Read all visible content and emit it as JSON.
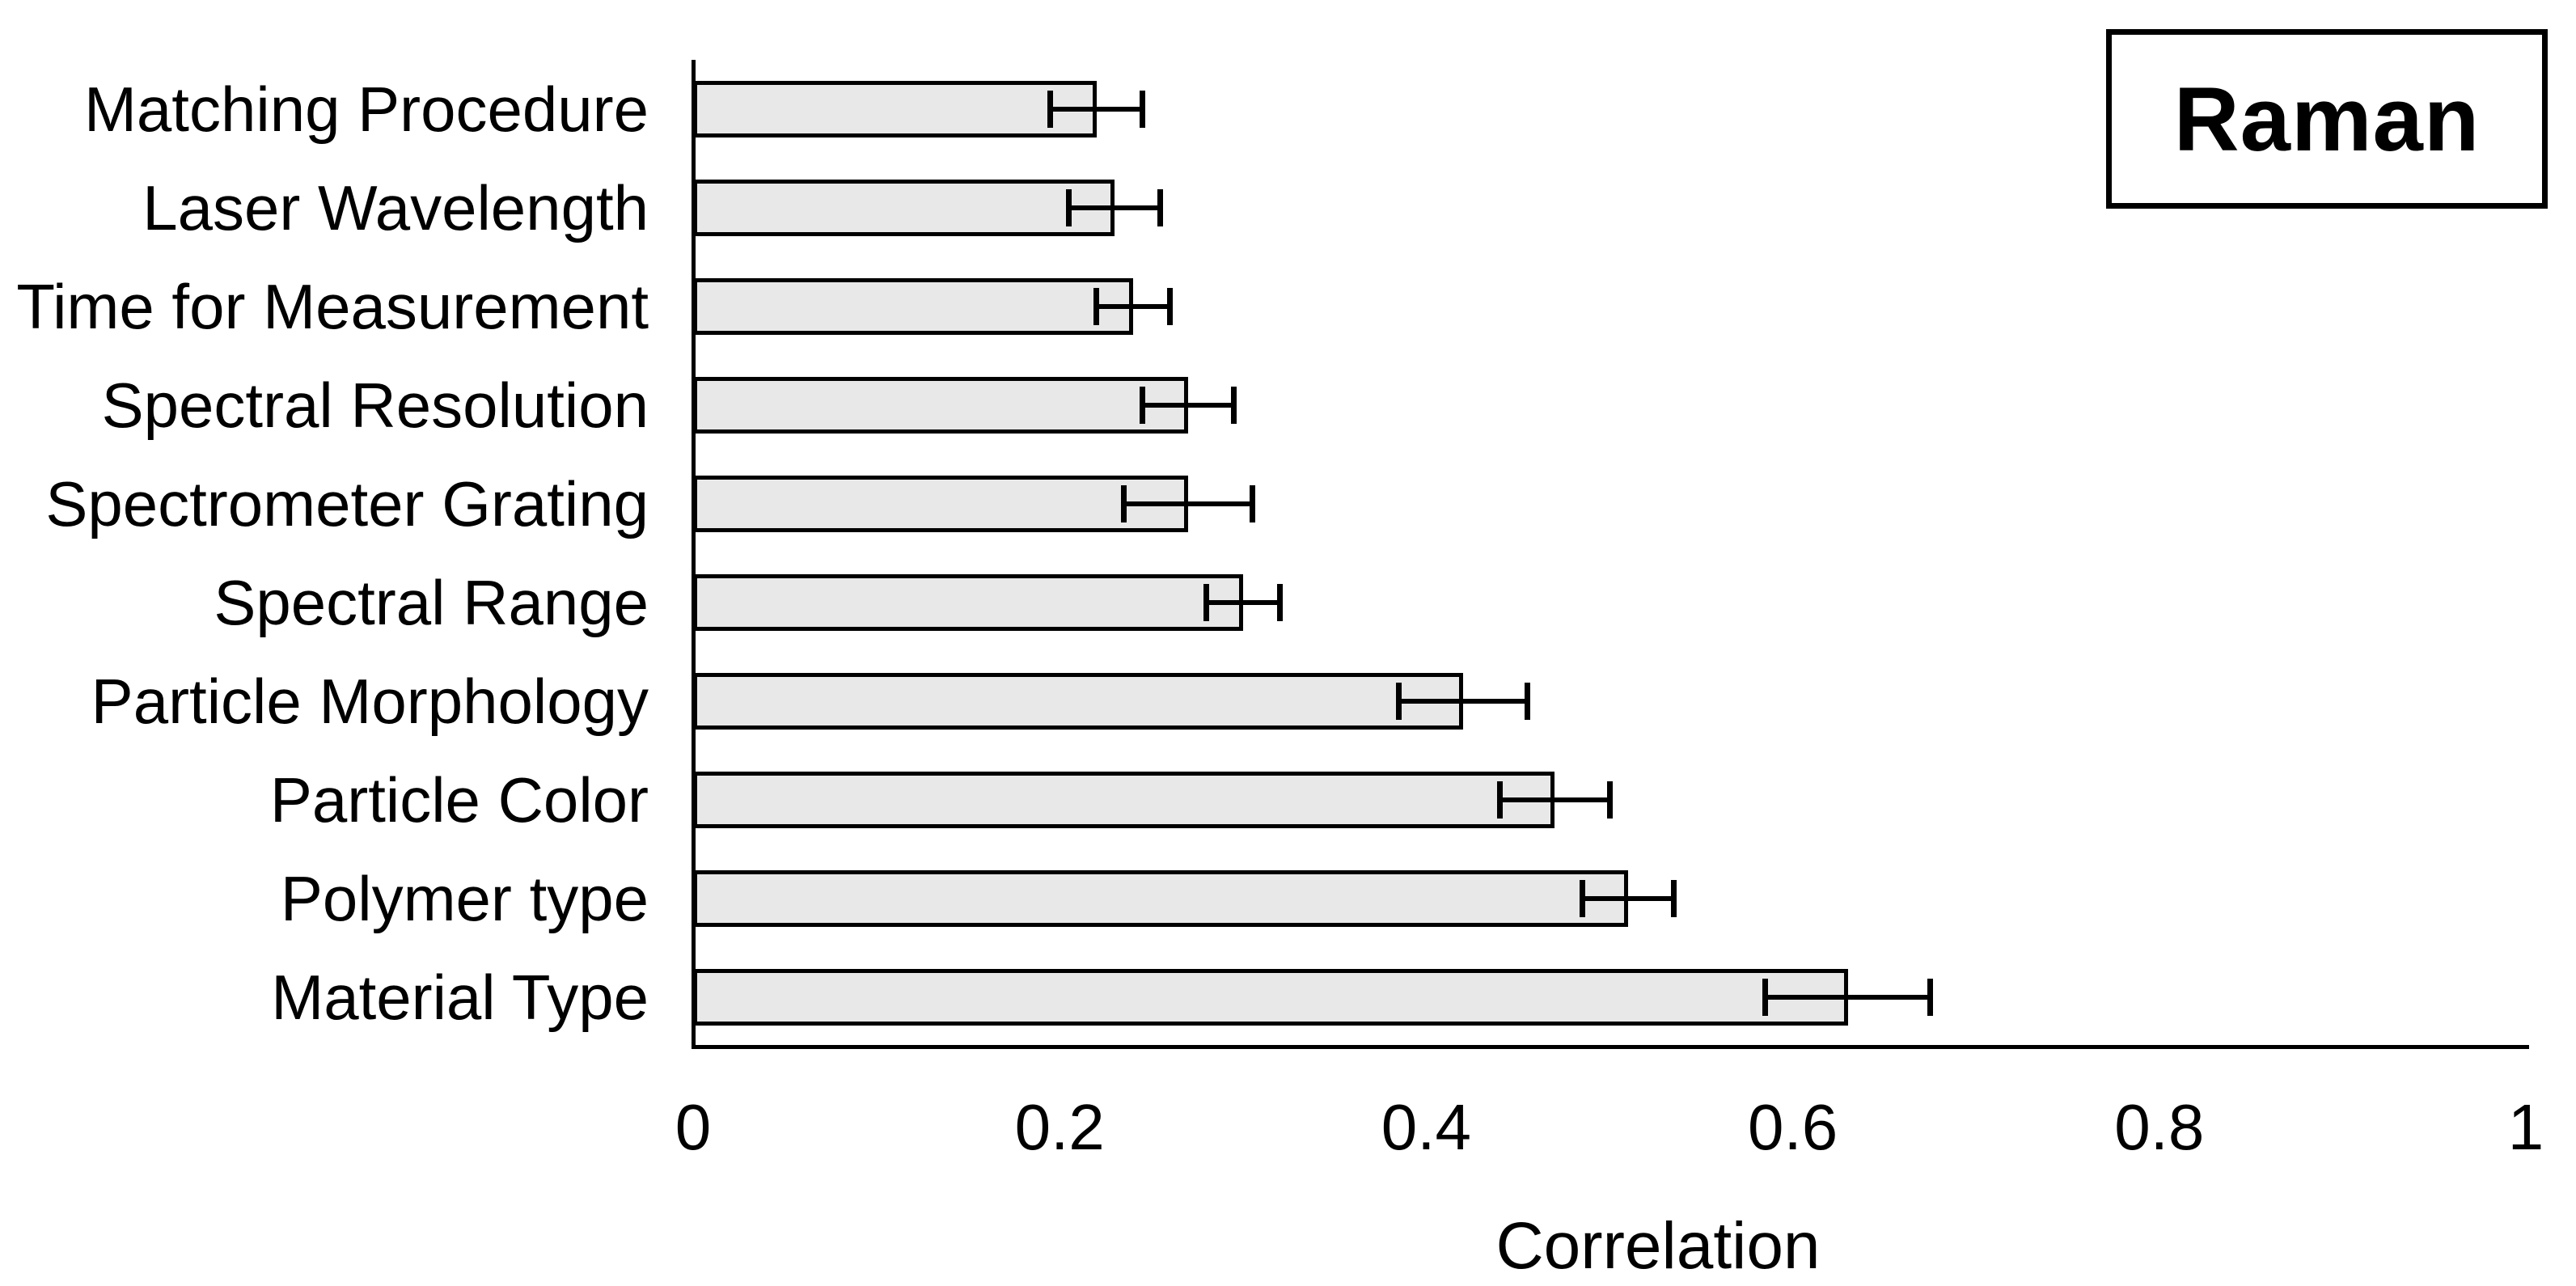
{
  "panel": {
    "label": "Raman"
  },
  "chart_data": {
    "type": "bar",
    "orientation": "horizontal",
    "title": "",
    "xlabel": "Correlation",
    "ylabel": "",
    "xlim": [
      0,
      1
    ],
    "x_ticks": [
      0,
      0.2,
      0.4,
      0.6,
      0.8,
      1
    ],
    "x_tick_labels": [
      "0",
      "0.2",
      "0.4",
      "0.6",
      "0.8",
      "1"
    ],
    "grid": false,
    "legend": false,
    "categories_top_to_bottom": [
      "Matching Procedure",
      "Laser Wavelength",
      "Time for Measurement",
      "Spectral Resolution",
      "Spectrometer Grating",
      "Spectral Range",
      "Particle Morphology",
      "Particle Color",
      "Polymer type",
      "Material Type"
    ],
    "values": [
      0.22,
      0.23,
      0.24,
      0.27,
      0.27,
      0.3,
      0.42,
      0.47,
      0.51,
      0.63
    ],
    "errors": [
      0.025,
      0.025,
      0.02,
      0.025,
      0.035,
      0.02,
      0.035,
      0.03,
      0.025,
      0.045
    ],
    "colors": {
      "bar_fill": "#e8e8e8",
      "bar_border": "#000000",
      "axis": "#000000",
      "text": "#000000",
      "background": "#ffffff"
    }
  }
}
